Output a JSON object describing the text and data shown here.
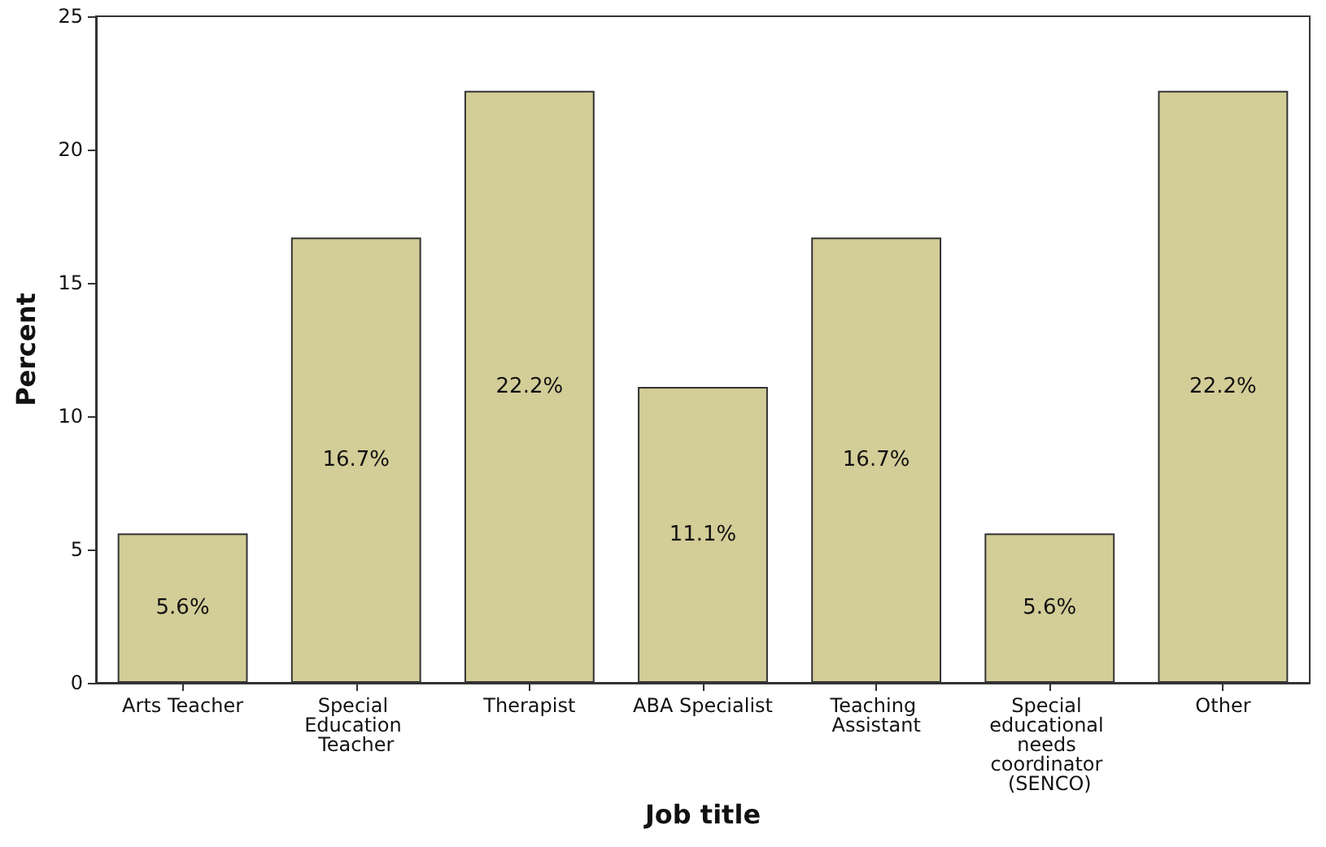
{
  "chart_data": {
    "type": "bar",
    "xlabel": "Job title",
    "ylabel": "Percent",
    "categories": [
      "Arts Teacher",
      "Special Education Teacher",
      "Therapist",
      "ABA Specialist",
      "Teaching Assistant",
      "Special educational needs coordinator (SENCO)",
      "Other"
    ],
    "values": [
      5.6,
      16.7,
      22.2,
      11.1,
      16.7,
      5.6,
      22.2
    ],
    "value_labels": [
      "5.6%",
      "16.7%",
      "22.2%",
      "11.1%",
      "16.7%",
      "5.6%",
      "22.2%"
    ],
    "color": "#d3cd98",
    "ylim": [
      0,
      25
    ],
    "yticks": [
      0,
      5,
      10,
      15,
      20,
      25
    ],
    "grid": false
  }
}
